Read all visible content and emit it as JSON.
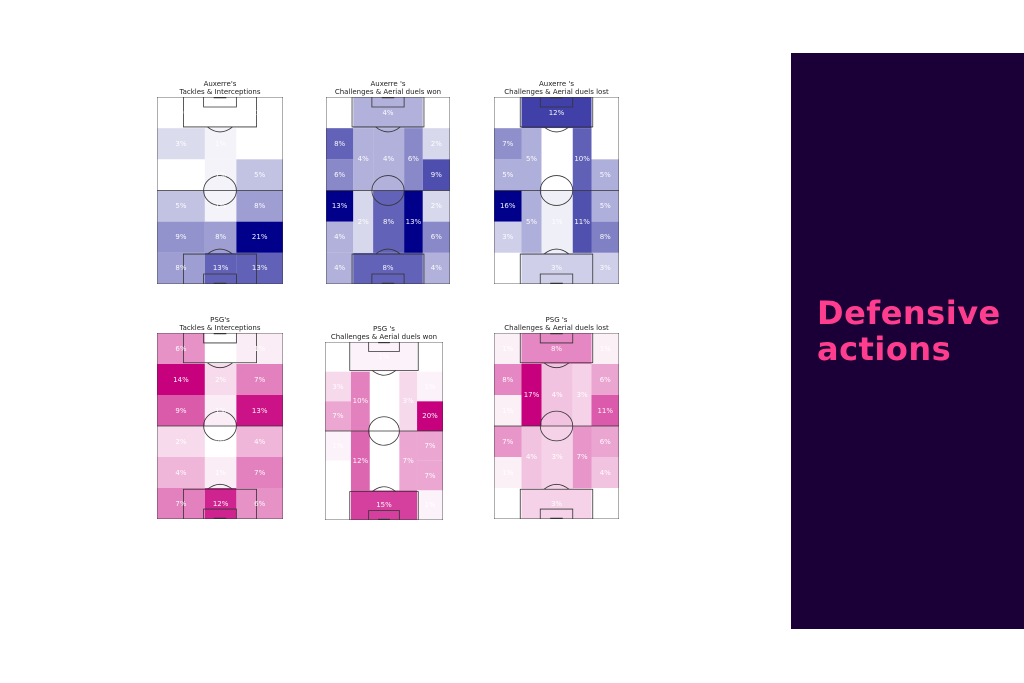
{
  "side_panel": {
    "heading_line1": "Defensive",
    "heading_line2": "actions",
    "background": "#1a0036",
    "text_color": "#ff3d8f"
  },
  "chart_data": [
    {
      "type": "heatmap",
      "team": "Auxerre",
      "title_line1": "Auxerre's",
      "title_line2": "Tackles & Interceptions",
      "zones": "thirds",
      "color": "#00008b",
      "rows": [
        [
          "0%",
          "0%",
          "0%"
        ],
        [
          "3%",
          "1%",
          "0%"
        ],
        [
          "0%",
          "1%",
          "5%"
        ],
        [
          "5%",
          "1%",
          "8%"
        ],
        [
          "9%",
          "8%",
          "21%"
        ],
        [
          "8%",
          "13%",
          "13%"
        ]
      ]
    },
    {
      "type": "heatmap",
      "team": "Auxerre",
      "title_line1": "Auxerre 's",
      "title_line2": "Challenges & Aerial duels won",
      "zones": "positional",
      "color": "#00008b",
      "wide_left": [
        "0%",
        "8%",
        "6%",
        "13%",
        "4%",
        "4%"
      ],
      "wide_right": [
        "0%",
        "2%",
        "9%",
        "2%",
        "6%",
        "4%"
      ],
      "top_box": "4%",
      "bottom_box": "8%",
      "upper_mid": [
        "4%",
        "4%",
        "6%"
      ],
      "lower_mid": [
        "2%",
        "8%",
        "13%"
      ]
    },
    {
      "type": "heatmap",
      "team": "Auxerre",
      "title_line1": "Auxerre 's",
      "title_line2": "Challenges & Aerial duels lost",
      "zones": "positional",
      "color": "#00008b",
      "wide_left": [
        "0%",
        "7%",
        "5%",
        "16%",
        "3%",
        "0%"
      ],
      "wide_right": [
        "0%",
        "0%",
        "5%",
        "5%",
        "8%",
        "3%"
      ],
      "top_box": "12%",
      "bottom_box": "3%",
      "upper_mid": [
        "5%",
        "0%",
        "10%"
      ],
      "lower_mid": [
        "5%",
        "1%",
        "11%"
      ]
    },
    {
      "type": "heatmap",
      "team": "PSG",
      "title_line1": "PSG's",
      "title_line2": "Tackles & Interceptions",
      "zones": "thirds",
      "color": "#c7007d",
      "rows": [
        [
          "6%",
          "0%",
          "1%"
        ],
        [
          "14%",
          "2%",
          "7%"
        ],
        [
          "9%",
          "1%",
          "13%"
        ],
        [
          "2%",
          "0%",
          "4%"
        ],
        [
          "4%",
          "1%",
          "7%"
        ],
        [
          "7%",
          "12%",
          "6%"
        ]
      ]
    },
    {
      "type": "heatmap",
      "team": "PSG",
      "title_line1": "PSG 's",
      "title_line2": "Challenges & Aerial duels won",
      "zones": "positional",
      "color": "#c7007d",
      "wide_left": [
        "0%",
        "3%",
        "7%",
        "1%",
        "0%",
        "0%"
      ],
      "wide_right": [
        "0%",
        "1%",
        "20%",
        "7%",
        "7%",
        "1%"
      ],
      "top_box": "1%",
      "bottom_box": "15%",
      "upper_mid": [
        "10%",
        "0%",
        "3%"
      ],
      "lower_mid": [
        "12%",
        "0%",
        "7%"
      ]
    },
    {
      "type": "heatmap",
      "team": "PSG",
      "title_line1": "PSG 's",
      "title_line2": "Challenges & Aerial duels lost",
      "zones": "positional",
      "color": "#c7007d",
      "wide_left": [
        "1%",
        "8%",
        "1%",
        "7%",
        "1%",
        "0%"
      ],
      "wide_right": [
        "1%",
        "6%",
        "11%",
        "6%",
        "4%",
        "0%"
      ],
      "top_box": "8%",
      "bottom_box": "3%",
      "upper_mid": [
        "17%",
        "4%",
        "3%"
      ],
      "lower_mid": [
        "4%",
        "3%",
        "7%"
      ]
    }
  ]
}
